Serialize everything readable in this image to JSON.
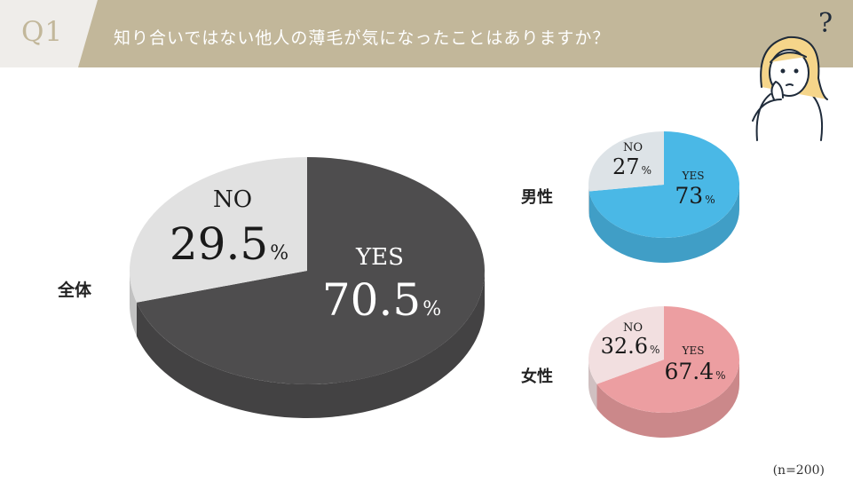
{
  "header": {
    "question_no": "Q1",
    "question": "知り合いではない他人の薄毛が気になったことはありますか？",
    "band_color": "#c2b79a"
  },
  "note": "(n=200)",
  "chart_data": [
    {
      "type": "pie",
      "segment": "全体",
      "slices": [
        {
          "label": "YES",
          "value": 70.5,
          "display": "70.5",
          "unit": "%",
          "color": "#4e4d4e"
        },
        {
          "label": "NO",
          "value": 29.5,
          "display": "29.5",
          "unit": "%",
          "color": "#e1e1e1"
        }
      ]
    },
    {
      "type": "pie",
      "segment": "男性",
      "slices": [
        {
          "label": "YES",
          "value": 73,
          "display": "73",
          "unit": "%",
          "color": "#4ab8e6"
        },
        {
          "label": "NO",
          "value": 27,
          "display": "27",
          "unit": "%",
          "color": "#dde3e7"
        }
      ]
    },
    {
      "type": "pie",
      "segment": "女性",
      "slices": [
        {
          "label": "YES",
          "value": 67.4,
          "display": "67.4",
          "unit": "%",
          "color": "#ec9ea1"
        },
        {
          "label": "NO",
          "value": 32.6,
          "display": "32.6",
          "unit": "%",
          "color": "#f2dfe0"
        }
      ]
    }
  ]
}
